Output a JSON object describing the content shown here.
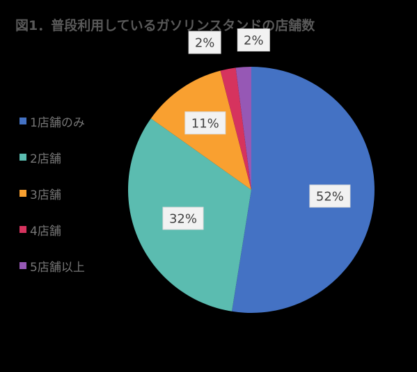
{
  "chart_data": {
    "type": "pie",
    "title": "図1．普段利用しているガソリンスタンドの店舗数",
    "categories": [
      "1店舗のみ",
      "2店舗",
      "3店舗",
      "4店舗",
      "5店舗以上"
    ],
    "values": [
      52,
      32,
      11,
      2,
      2
    ],
    "data_labels": [
      "52%",
      "32%",
      "11%",
      "2%",
      "2%"
    ],
    "unit": "%",
    "colors": [
      "#4472c4",
      "#5bbcb0",
      "#f9a030",
      "#d6335e",
      "#9658b5"
    ],
    "legend_position": "left",
    "start_angle": "12 o'clock",
    "direction": "clockwise"
  }
}
